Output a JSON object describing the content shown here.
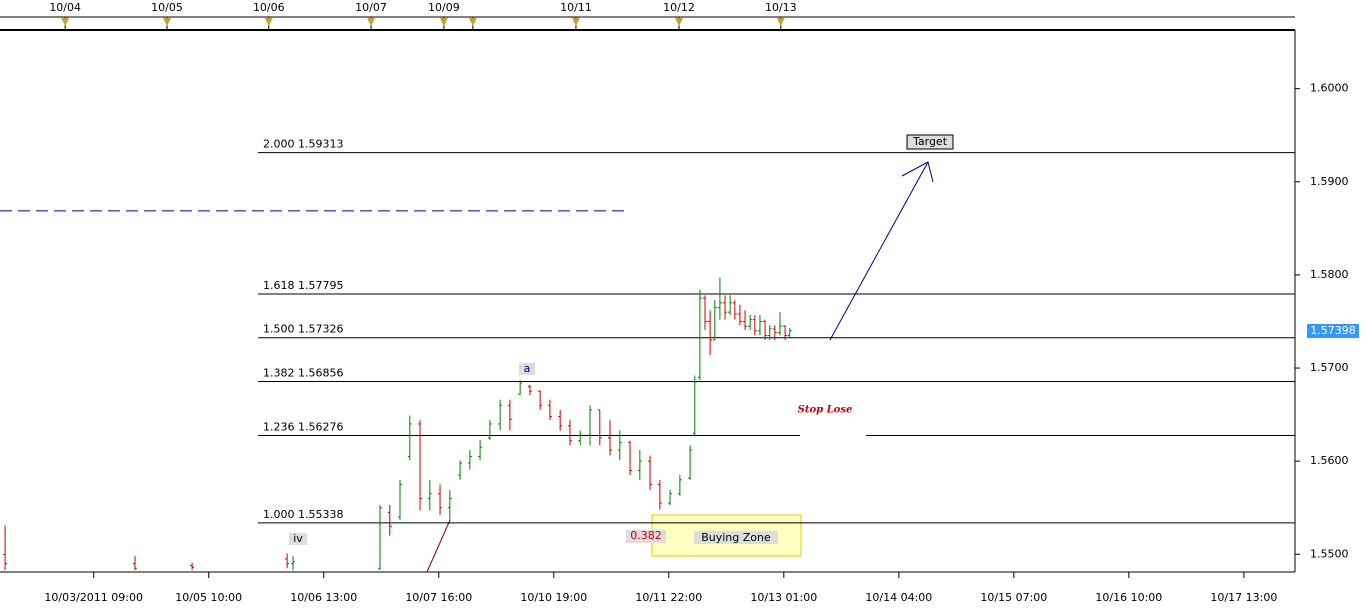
{
  "chart_data": {
    "type": "ohlc",
    "x": [
      -20.8,
      9.7,
      23.1,
      45.4,
      46.8,
      67.2,
      69.5,
      71.9,
      74.2,
      76.6,
      78.9,
      81.3,
      83.6,
      86,
      88.3,
      90.7,
      93,
      95.4,
      97.7,
      100.1,
      102.4,
      104.8,
      107.1,
      109.5,
      111.8,
      114.2,
      116.5,
      118.8,
      121.2,
      123.5,
      125.9,
      128.2,
      130.6,
      132.9,
      135.3,
      137.6,
      140,
      141.1,
      142.3,
      143.5,
      144.7,
      145.8,
      147,
      148.2,
      149.4,
      150.5,
      151.7,
      152.9,
      154.1,
      155.2,
      156.4,
      157.6,
      158.7,
      159.9,
      161.1,
      162.3,
      163.4
    ],
    "open": [
      1.55,
      1.549,
      1.5488,
      1.5495,
      1.549,
      1.5485,
      1.5545,
      1.554,
      1.5605,
      1.564,
      1.556,
      1.5565,
      1.555,
      1.5585,
      1.5598,
      1.5605,
      1.5625,
      1.564,
      1.566,
      1.5672,
      1.568,
      1.5675,
      1.566,
      1.5648,
      1.5638,
      1.5622,
      1.5628,
      1.5655,
      1.5625,
      1.5612,
      1.562,
      1.559,
      1.56,
      1.5575,
      1.5555,
      1.5565,
      1.5582,
      1.563,
      1.569,
      1.5775,
      1.575,
      1.573,
      1.5765,
      1.577,
      1.576,
      1.577,
      1.5758,
      1.575,
      1.5745,
      1.5752,
      1.574,
      1.575,
      1.5735,
      1.5742,
      1.5738,
      1.5745,
      1.5735
    ],
    "high": [
      1.5531,
      1.5498,
      1.5491,
      1.5501,
      1.5498,
      1.5553,
      1.5553,
      1.558,
      1.5649,
      1.5644,
      1.558,
      1.5575,
      1.5569,
      1.5601,
      1.5612,
      1.5623,
      1.5644,
      1.5666,
      1.5666,
      1.5687,
      1.5682,
      1.5676,
      1.5666,
      1.5655,
      1.5644,
      1.5633,
      1.566,
      1.5655,
      1.5644,
      1.5633,
      1.5622,
      1.5612,
      1.5606,
      1.558,
      1.5569,
      1.5585,
      1.5617,
      1.5692,
      1.5784,
      1.5778,
      1.5762,
      1.5773,
      1.5797,
      1.5778,
      1.5778,
      1.5773,
      1.5768,
      1.5762,
      1.5757,
      1.5757,
      1.5757,
      1.5752,
      1.5746,
      1.5746,
      1.576,
      1.5746,
      1.5743
    ],
    "low": [
      1.5483,
      1.5483,
      1.5483,
      1.5485,
      1.5483,
      1.5483,
      1.552,
      1.5537,
      1.5601,
      1.5547,
      1.5547,
      1.5542,
      1.5537,
      1.558,
      1.5591,
      1.5601,
      1.5623,
      1.5633,
      1.5633,
      1.5671,
      1.5671,
      1.5655,
      1.5644,
      1.5633,
      1.5617,
      1.5617,
      1.5617,
      1.5617,
      1.5606,
      1.5601,
      1.5585,
      1.558,
      1.5569,
      1.5548,
      1.5553,
      1.5563,
      1.558,
      1.5628,
      1.5687,
      1.5741,
      1.5714,
      1.573,
      1.5752,
      1.5752,
      1.5757,
      1.5752,
      1.5746,
      1.5741,
      1.5741,
      1.5735,
      1.5735,
      1.573,
      1.573,
      1.573,
      1.5735,
      1.573,
      1.5732
    ],
    "close": [
      1.549,
      1.5485,
      1.5486,
      1.549,
      1.5492,
      1.555,
      1.553,
      1.5575,
      1.564,
      1.556,
      1.5565,
      1.555,
      1.556,
      1.5598,
      1.5605,
      1.5615,
      1.564,
      1.566,
      1.5645,
      1.5684,
      1.5675,
      1.566,
      1.5648,
      1.5638,
      1.5622,
      1.5628,
      1.5655,
      1.5625,
      1.5612,
      1.562,
      1.559,
      1.56,
      1.5575,
      1.5555,
      1.5565,
      1.558,
      1.5612,
      1.5685,
      1.5775,
      1.575,
      1.573,
      1.5765,
      1.577,
      1.576,
      1.577,
      1.5758,
      1.575,
      1.5745,
      1.5752,
      1.574,
      1.575,
      1.5735,
      1.5742,
      1.5738,
      1.5745,
      1.5735,
      1.574
    ],
    "up_color": "#008000",
    "down_color": "#cc0000",
    "xlim": [
      -22,
      282
    ],
    "xticks": [
      {
        "value": 0,
        "label": "10/03/2011 09:00"
      },
      {
        "value": 27,
        "label": "10/05 10:00"
      },
      {
        "value": 54,
        "label": "10/06 13:00"
      },
      {
        "value": 81,
        "label": "10/07 16:00"
      },
      {
        "value": 108,
        "label": "10/10 19:00"
      },
      {
        "value": 135,
        "label": "10/11 22:00"
      },
      {
        "value": 162,
        "label": "10/13 01:00"
      },
      {
        "value": 189,
        "label": "10/14 04:00"
      },
      {
        "value": 216,
        "label": "10/15 07:00"
      },
      {
        "value": 243,
        "label": "10/16 10:00"
      },
      {
        "value": 270,
        "label": "10/17 13:00"
      }
    ],
    "top_ticks": [
      -6.7,
      17.2,
      41.1,
      65.1,
      82.2,
      89,
      113.2,
      137.4,
      161.3
    ],
    "top_tick_labels": [
      "10/04",
      "10/05",
      "10/06",
      "10/07",
      "10/09",
      null,
      "10/11",
      "10/12",
      "10/13"
    ],
    "ylim": [
      1.5481,
      1.6063
    ],
    "yticks": [
      {
        "value": 1.55,
        "label": "1.5500"
      },
      {
        "value": 1.56,
        "label": "1.5600"
      },
      {
        "value": 1.57,
        "label": "1.5700"
      },
      {
        "value": 1.58,
        "label": "1.5800"
      },
      {
        "value": 1.59,
        "label": "1.5900"
      },
      {
        "value": 1.6,
        "label": "1.6000"
      }
    ],
    "current_price": 1.57398,
    "levels": [
      {
        "label": "2.000 1.59313",
        "value": 1.59313
      },
      {
        "label": "1.618 1.57795",
        "value": 1.57795
      },
      {
        "label": "1.500 1.57326",
        "value": 1.57326
      },
      {
        "label": "1.382 1.56856",
        "value": 1.56856
      },
      {
        "label": "1.236 1.56276",
        "value": 1.56276
      },
      {
        "label": "1.000 1.55338",
        "value": 1.55338
      }
    ],
    "dashed_level": 1.58688,
    "annotations": {
      "target": "Target",
      "stop": "Stop Lose",
      "zone": "Buying  Zone",
      "fib": "0.382",
      "wave_a": "a",
      "wave_iv": "iv"
    }
  }
}
